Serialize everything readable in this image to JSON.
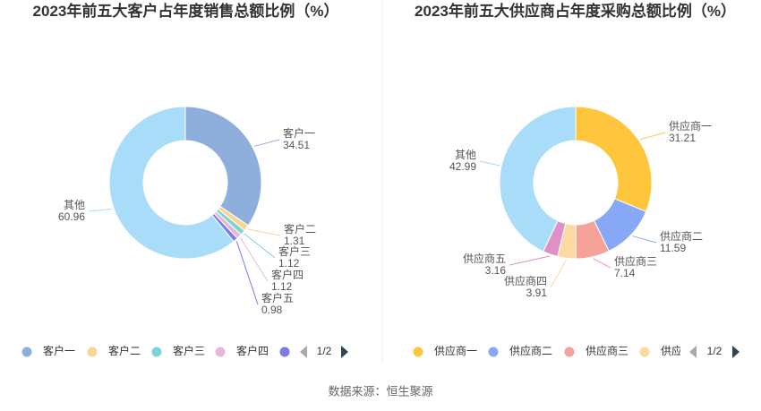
{
  "chart_data": [
    {
      "type": "pie",
      "title": "2023年前五大客户占年度销售总额比例（%）",
      "categories": [
        "客户一",
        "客户二",
        "客户三",
        "客户四",
        "客户五",
        "其他"
      ],
      "values": [
        34.51,
        1.31,
        1.12,
        1.12,
        0.98,
        60.96
      ],
      "colors": [
        "#8eaedc",
        "#fad694",
        "#7fd3d3",
        "#e8b8d8",
        "#7b7bea",
        "#a8dcf8"
      ],
      "legend_page": "1/2"
    },
    {
      "type": "pie",
      "title": "2023年前五大供应商占年度采购总额比例（%）",
      "categories": [
        "供应商一",
        "供应商二",
        "供应商三",
        "供应商四",
        "供应商五",
        "其他"
      ],
      "values": [
        31.21,
        11.59,
        7.14,
        3.91,
        3.16,
        42.99
      ],
      "colors": [
        "#ffc53d",
        "#86a8f5",
        "#f5a29a",
        "#fcd9a0",
        "#e08fc8",
        "#a8dcf8"
      ],
      "legend_page": "1/2"
    }
  ],
  "source": "数据来源：恒生聚源"
}
